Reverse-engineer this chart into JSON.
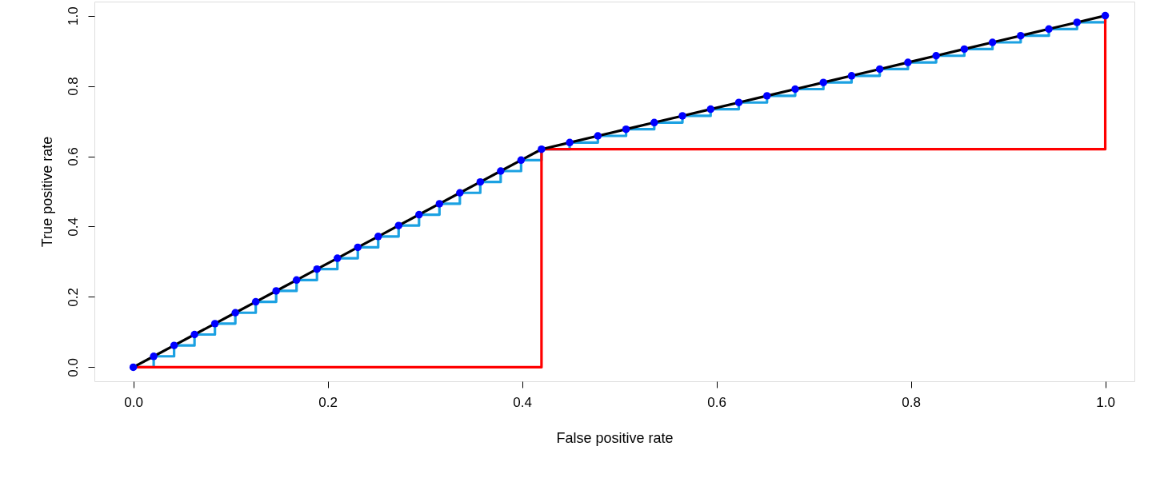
{
  "chart_data": {
    "type": "line",
    "xlabel": "False positive rate",
    "ylabel": "True positive rate",
    "xlim": [
      -0.04,
      1.03
    ],
    "ylim": [
      -0.04,
      1.04
    ],
    "xticks": [
      {
        "value": 0,
        "label": "0.0"
      },
      0.2,
      0.4,
      0.6,
      0.8,
      {
        "value": 1,
        "label": "1.0"
      }
    ],
    "yticks": [
      {
        "value": 0,
        "label": "0.0"
      },
      0.2,
      0.4,
      0.6,
      0.8,
      {
        "value": 1,
        "label": "1.0"
      }
    ],
    "grid": false,
    "series": [
      {
        "type": "step",
        "color": "#1ba1e2",
        "line_style": "solid",
        "x": [
          0,
          0.021,
          0.042,
          0.063,
          0.084,
          0.105,
          0.126,
          0.147,
          0.168,
          0.189,
          0.21,
          0.231,
          0.252,
          0.273,
          0.294,
          0.315,
          0.336,
          0.357,
          0.378,
          0.399,
          0.42,
          0.449,
          0.478,
          0.507,
          0.536,
          0.565,
          0.594,
          0.623,
          0.652,
          0.681,
          0.71,
          0.739,
          0.768,
          0.797,
          0.826,
          0.855,
          0.884,
          0.913,
          0.942,
          0.971,
          1.0
        ],
        "values": [
          0,
          0.031,
          0.062,
          0.093,
          0.124,
          0.155,
          0.186,
          0.217,
          0.248,
          0.279,
          0.31,
          0.341,
          0.372,
          0.403,
          0.434,
          0.465,
          0.496,
          0.527,
          0.558,
          0.589,
          0.62,
          0.639,
          0.658,
          0.677,
          0.696,
          0.715,
          0.734,
          0.753,
          0.772,
          0.791,
          0.81,
          0.829,
          0.848,
          0.867,
          0.886,
          0.905,
          0.924,
          0.943,
          0.962,
          0.981,
          1.0
        ]
      },
      {
        "type": "step",
        "color": "#ff0000",
        "line_style": "solid",
        "x": [
          0,
          0.42,
          1.0
        ],
        "values": [
          0,
          0.62,
          1.0
        ]
      },
      {
        "type": "line",
        "color": "#000000",
        "line_style": "solid",
        "x": [
          0,
          0.021,
          0.042,
          0.063,
          0.084,
          0.105,
          0.126,
          0.147,
          0.168,
          0.189,
          0.21,
          0.231,
          0.252,
          0.273,
          0.294,
          0.315,
          0.336,
          0.357,
          0.378,
          0.399,
          0.42,
          0.449,
          0.478,
          0.507,
          0.536,
          0.565,
          0.594,
          0.623,
          0.652,
          0.681,
          0.71,
          0.739,
          0.768,
          0.797,
          0.826,
          0.855,
          0.884,
          0.913,
          0.942,
          0.971,
          1.0
        ],
        "values": [
          0,
          0.031,
          0.062,
          0.093,
          0.124,
          0.155,
          0.186,
          0.217,
          0.248,
          0.279,
          0.31,
          0.341,
          0.372,
          0.403,
          0.434,
          0.465,
          0.496,
          0.527,
          0.558,
          0.589,
          0.62,
          0.639,
          0.658,
          0.677,
          0.696,
          0.715,
          0.734,
          0.753,
          0.772,
          0.791,
          0.81,
          0.829,
          0.848,
          0.867,
          0.886,
          0.905,
          0.924,
          0.943,
          0.962,
          0.981,
          1.0
        ]
      },
      {
        "type": "scatter",
        "color": "#0000ff",
        "marker": "circle",
        "x": [
          0,
          0.021,
          0.042,
          0.063,
          0.084,
          0.105,
          0.126,
          0.147,
          0.168,
          0.189,
          0.21,
          0.231,
          0.252,
          0.273,
          0.294,
          0.315,
          0.336,
          0.357,
          0.378,
          0.399,
          0.42,
          0.449,
          0.478,
          0.507,
          0.536,
          0.565,
          0.594,
          0.623,
          0.652,
          0.681,
          0.71,
          0.739,
          0.768,
          0.797,
          0.826,
          0.855,
          0.884,
          0.913,
          0.942,
          0.971,
          1.0
        ],
        "values": [
          0,
          0.031,
          0.062,
          0.093,
          0.124,
          0.155,
          0.186,
          0.217,
          0.248,
          0.279,
          0.31,
          0.341,
          0.372,
          0.403,
          0.434,
          0.465,
          0.496,
          0.527,
          0.558,
          0.589,
          0.62,
          0.639,
          0.658,
          0.677,
          0.696,
          0.715,
          0.734,
          0.753,
          0.772,
          0.791,
          0.81,
          0.829,
          0.848,
          0.867,
          0.886,
          0.905,
          0.924,
          0.943,
          0.962,
          0.981,
          1.0
        ]
      }
    ]
  }
}
